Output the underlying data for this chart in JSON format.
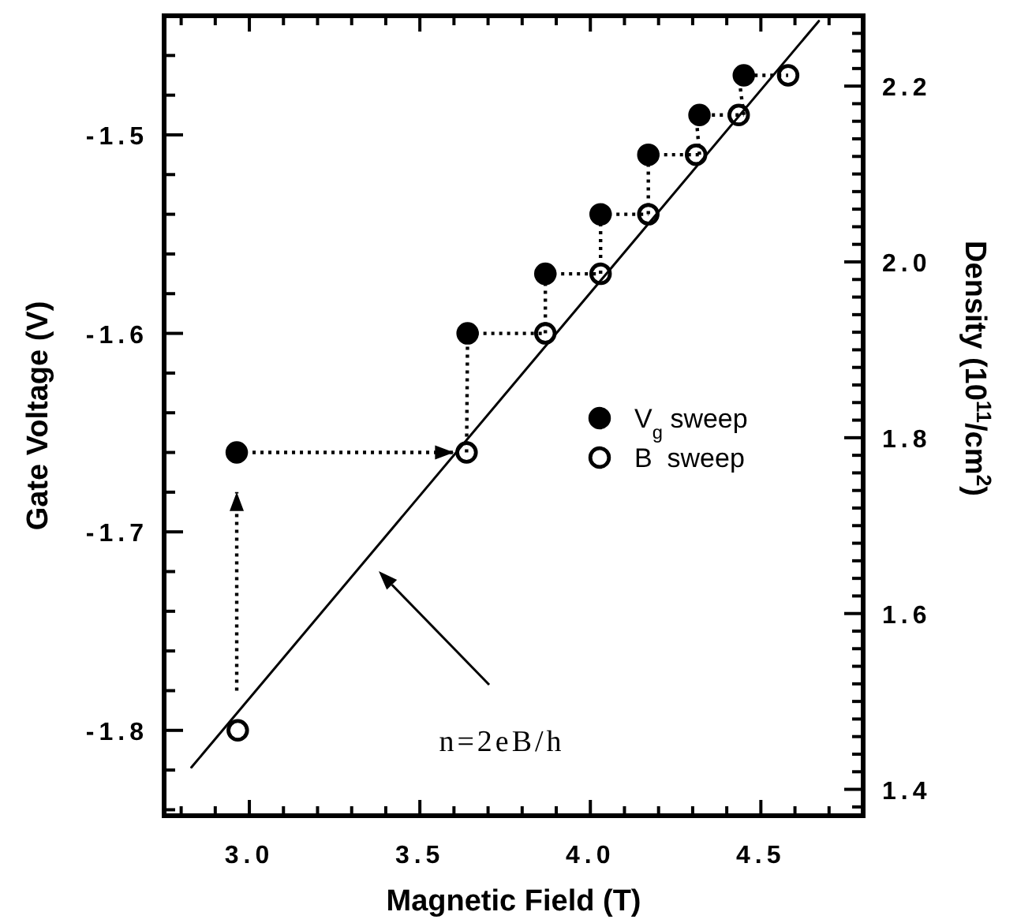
{
  "chart_data": {
    "type": "scatter",
    "xlabel": "Magnetic Field (T)",
    "ylabel": "Gate Voltage (V)",
    "y2label": "Density (10$^{11}$/cm$^{2}$)",
    "xlim": [
      2.75,
      4.8
    ],
    "ylim": [
      -1.843,
      -1.44
    ],
    "y2lim": [
      1.37,
      2.28
    ],
    "xticks": [
      {
        "value": 2.8,
        "label": null
      },
      {
        "value": 2.9,
        "label": null
      },
      {
        "value": 3,
        "label": "3.0"
      },
      {
        "value": 3.1,
        "label": null
      },
      {
        "value": 3.2,
        "label": null
      },
      {
        "value": 3.3,
        "label": null
      },
      {
        "value": 3.4,
        "label": null
      },
      {
        "value": 3.5,
        "label": "3.5"
      },
      {
        "value": 3.6,
        "label": null
      },
      {
        "value": 3.7,
        "label": null
      },
      {
        "value": 3.8,
        "label": null
      },
      {
        "value": 3.9,
        "label": null
      },
      {
        "value": 4,
        "label": "4.0"
      },
      {
        "value": 4.1,
        "label": null
      },
      {
        "value": 4.2,
        "label": null
      },
      {
        "value": 4.3,
        "label": null
      },
      {
        "value": 4.4,
        "label": null
      },
      {
        "value": 4.5,
        "label": "4.5"
      },
      {
        "value": 4.6,
        "label": null
      },
      {
        "value": 4.7,
        "label": null
      }
    ],
    "yticks": [
      {
        "value": -1.84,
        "label": null
      },
      {
        "value": -1.82,
        "label": null
      },
      -1.8,
      {
        "value": -1.78,
        "label": null
      },
      {
        "value": -1.76,
        "label": null
      },
      {
        "value": -1.74,
        "label": null
      },
      {
        "value": -1.72,
        "label": null
      },
      -1.7,
      {
        "value": -1.68,
        "label": null
      },
      {
        "value": -1.66,
        "label": null
      },
      {
        "value": -1.64,
        "label": null
      },
      {
        "value": -1.62,
        "label": null
      },
      -1.6,
      {
        "value": -1.58,
        "label": null
      },
      {
        "value": -1.56,
        "label": null
      },
      {
        "value": -1.54,
        "label": null
      },
      {
        "value": -1.52,
        "label": null
      },
      -1.5,
      {
        "value": -1.48,
        "label": null
      },
      {
        "value": -1.46,
        "label": null
      },
      {
        "value": -1.44,
        "label": null
      }
    ],
    "y2ticks": [
      {
        "value": 1.38,
        "label": null
      },
      1.4,
      {
        "value": 1.42,
        "label": null
      },
      {
        "value": 1.44,
        "label": null
      },
      {
        "value": 1.46,
        "label": null
      },
      {
        "value": 1.48,
        "label": null
      },
      {
        "value": 1.5,
        "label": null
      },
      {
        "value": 1.52,
        "label": null
      },
      {
        "value": 1.54,
        "label": null
      },
      {
        "value": 1.56,
        "label": null
      },
      {
        "value": 1.58,
        "label": null
      },
      1.6,
      {
        "value": 1.62,
        "label": null
      },
      {
        "value": 1.64,
        "label": null
      },
      {
        "value": 1.66,
        "label": null
      },
      {
        "value": 1.68,
        "label": null
      },
      {
        "value": 1.7,
        "label": null
      },
      {
        "value": 1.72,
        "label": null
      },
      {
        "value": 1.74,
        "label": null
      },
      {
        "value": 1.76,
        "label": null
      },
      {
        "value": 1.78,
        "label": null
      },
      1.8,
      {
        "value": 1.82,
        "label": null
      },
      {
        "value": 1.84,
        "label": null
      },
      {
        "value": 1.86,
        "label": null
      },
      {
        "value": 1.88,
        "label": null
      },
      {
        "value": 1.9,
        "label": null
      },
      {
        "value": 1.92,
        "label": null
      },
      {
        "value": 1.94,
        "label": null
      },
      {
        "value": 1.96,
        "label": null
      },
      {
        "value": 1.98,
        "label": null
      },
      {
        "value": 2.0,
        "label": "2.0"
      },
      {
        "value": 2.02,
        "label": null
      },
      {
        "value": 2.04,
        "label": null
      },
      {
        "value": 2.06,
        "label": null
      },
      {
        "value": 2.08,
        "label": null
      },
      {
        "value": 2.1,
        "label": null
      },
      {
        "value": 2.12,
        "label": null
      },
      {
        "value": 2.14,
        "label": null
      },
      {
        "value": 2.16,
        "label": null
      },
      {
        "value": 2.18,
        "label": null
      },
      2.2,
      {
        "value": 2.22,
        "label": null
      },
      {
        "value": 2.24,
        "label": null
      },
      {
        "value": 2.26,
        "label": null
      }
    ],
    "grid": false,
    "legend": "right",
    "marker": "circle",
    "series": [
      {
        "name": "V$_{g}$ sweep",
        "color": "#000000",
        "x": [
          2.963,
          3.64,
          3.868,
          4.03,
          4.17,
          4.32,
          4.45
        ],
        "values": [
          -1.66,
          -1.6,
          -1.57,
          -1.54,
          -1.51,
          -1.49,
          -1.47
        ]
      },
      {
        "name": "B  sweep",
        "color": "#000000",
        "x": [
          2.966,
          3.637,
          3.868,
          4.03,
          4.17,
          4.31,
          4.435,
          4.58
        ],
        "values": [
          -1.8,
          -1.66,
          -1.6,
          -1.57,
          -1.54,
          -1.51,
          -1.49,
          -1.47
        ]
      },
      {
        "type": "line",
        "color": "#000000",
        "line_style": "dotted",
        "marker": "none",
        "x": [
          2.963,
          2.963,
          null,
          2.963,
          3.6,
          null,
          3.637,
          3.64,
          3.868,
          3.868,
          4.03,
          4.03,
          4.17,
          4.17,
          4.32,
          4.31,
          4.45,
          4.435,
          4.58
        ],
        "values": [
          -1.78,
          -1.68,
          null,
          -1.66,
          -1.66,
          null,
          -1.66,
          -1.6,
          -1.6,
          -1.57,
          -1.57,
          -1.54,
          -1.54,
          -1.51,
          -1.51,
          -1.49,
          -1.49,
          -1.47,
          -1.47
        ]
      },
      {
        "type": "line",
        "axis": "y2",
        "color": "#000000",
        "line_style": "solid",
        "marker": "none",
        "x": [
          2.83,
          4.67
        ],
        "values": [
          1.425,
          2.274
        ]
      }
    ],
    "annotations": [
      "n=2eB/h"
    ]
  }
}
